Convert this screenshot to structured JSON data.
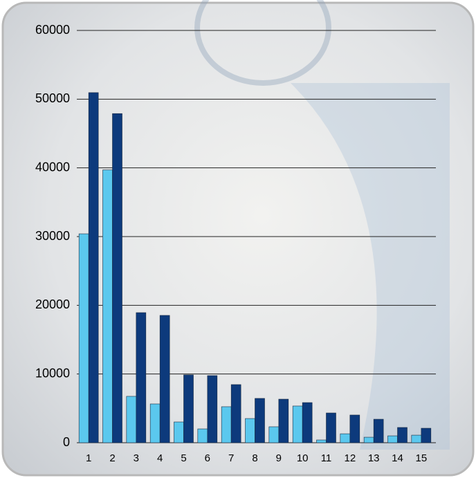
{
  "chart_data": {
    "type": "bar",
    "categories": [
      "1",
      "2",
      "3",
      "4",
      "5",
      "6",
      "7",
      "8",
      "9",
      "10",
      "11",
      "12",
      "13",
      "14",
      "15"
    ],
    "series": [
      {
        "color": "#5bc8ee",
        "values": [
          30400,
          39700,
          6750,
          5640,
          3020,
          2010,
          5240,
          3520,
          2320,
          5340,
          400,
          1300,
          800,
          1000,
          1100
        ]
      },
      {
        "color": "#0d3a7c",
        "values": [
          50950,
          47900,
          18930,
          18530,
          9870,
          9770,
          8460,
          6450,
          6340,
          5840,
          4330,
          4030,
          3420,
          2220,
          2110
        ]
      }
    ],
    "ylim": [
      0,
      60000
    ],
    "yticks": [
      0,
      10000,
      20000,
      30000,
      40000,
      50000,
      60000
    ],
    "grid": true
  }
}
